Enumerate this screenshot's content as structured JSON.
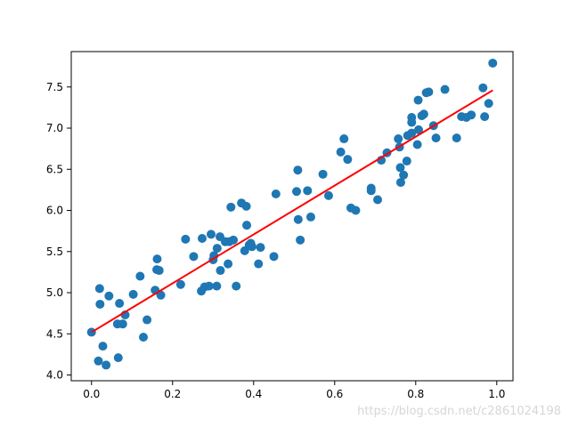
{
  "chart_data": {
    "type": "scatter",
    "title": "",
    "xlabel": "",
    "ylabel": "",
    "xlim": [
      -0.05,
      1.04
    ],
    "ylim": [
      3.93,
      7.93
    ],
    "grid": false,
    "x_ticks": [
      0.0,
      0.2,
      0.4,
      0.6,
      0.8,
      1.0
    ],
    "x_tick_labels": [
      "0.0",
      "0.2",
      "0.4",
      "0.6",
      "0.8",
      "1.0"
    ],
    "y_ticks": [
      4.0,
      4.5,
      5.0,
      5.5,
      6.0,
      6.5,
      7.0,
      7.5
    ],
    "y_tick_labels": [
      "4.0",
      "4.5",
      "5.0",
      "5.5",
      "6.0",
      "6.5",
      "7.0",
      "7.5"
    ],
    "series": [
      {
        "type": "scatter",
        "color": "#1f77b4",
        "points": [
          [
            0.0,
            4.52
          ],
          [
            0.017,
            4.17
          ],
          [
            0.02,
            5.05
          ],
          [
            0.021,
            4.86
          ],
          [
            0.028,
            4.35
          ],
          [
            0.036,
            4.12
          ],
          [
            0.043,
            4.96
          ],
          [
            0.064,
            4.62
          ],
          [
            0.066,
            4.21
          ],
          [
            0.069,
            4.87
          ],
          [
            0.077,
            4.62
          ],
          [
            0.083,
            4.73
          ],
          [
            0.103,
            4.98
          ],
          [
            0.12,
            5.2
          ],
          [
            0.128,
            4.46
          ],
          [
            0.137,
            4.67
          ],
          [
            0.157,
            5.03
          ],
          [
            0.161,
            5.28
          ],
          [
            0.162,
            5.41
          ],
          [
            0.167,
            5.27
          ],
          [
            0.171,
            4.97
          ],
          [
            0.22,
            5.1
          ],
          [
            0.232,
            5.65
          ],
          [
            0.252,
            5.44
          ],
          [
            0.271,
            5.02
          ],
          [
            0.273,
            5.66
          ],
          [
            0.279,
            5.07
          ],
          [
            0.29,
            5.08
          ],
          [
            0.295,
            5.71
          ],
          [
            0.3,
            5.4
          ],
          [
            0.302,
            5.45
          ],
          [
            0.309,
            5.08
          ],
          [
            0.31,
            5.54
          ],
          [
            0.317,
            5.68
          ],
          [
            0.318,
            5.27
          ],
          [
            0.33,
            5.62
          ],
          [
            0.337,
            5.35
          ],
          [
            0.34,
            5.62
          ],
          [
            0.344,
            6.04
          ],
          [
            0.35,
            5.64
          ],
          [
            0.357,
            5.08
          ],
          [
            0.37,
            6.09
          ],
          [
            0.378,
            5.51
          ],
          [
            0.382,
            6.05
          ],
          [
            0.383,
            5.82
          ],
          [
            0.389,
            5.58
          ],
          [
            0.393,
            5.6
          ],
          [
            0.396,
            5.56
          ],
          [
            0.412,
            5.35
          ],
          [
            0.417,
            5.55
          ],
          [
            0.45,
            5.44
          ],
          [
            0.455,
            6.2
          ],
          [
            0.506,
            6.23
          ],
          [
            0.509,
            6.49
          ],
          [
            0.51,
            5.89
          ],
          [
            0.515,
            5.64
          ],
          [
            0.533,
            6.24
          ],
          [
            0.541,
            5.92
          ],
          [
            0.571,
            6.44
          ],
          [
            0.585,
            6.18
          ],
          [
            0.615,
            6.71
          ],
          [
            0.623,
            6.87
          ],
          [
            0.632,
            6.62
          ],
          [
            0.64,
            6.03
          ],
          [
            0.652,
            6.0
          ],
          [
            0.69,
            6.27
          ],
          [
            0.69,
            6.24
          ],
          [
            0.706,
            6.13
          ],
          [
            0.715,
            6.61
          ],
          [
            0.729,
            6.7
          ],
          [
            0.757,
            6.87
          ],
          [
            0.76,
            6.77
          ],
          [
            0.762,
            6.52
          ],
          [
            0.763,
            6.34
          ],
          [
            0.77,
            6.43
          ],
          [
            0.778,
            6.6
          ],
          [
            0.78,
            6.91
          ],
          [
            0.79,
            6.94
          ],
          [
            0.79,
            7.13
          ],
          [
            0.79,
            7.07
          ],
          [
            0.804,
            6.8
          ],
          [
            0.806,
            7.34
          ],
          [
            0.807,
            6.98
          ],
          [
            0.815,
            7.15
          ],
          [
            0.82,
            7.17
          ],
          [
            0.826,
            7.43
          ],
          [
            0.832,
            7.44
          ],
          [
            0.844,
            7.03
          ],
          [
            0.85,
            6.88
          ],
          [
            0.872,
            7.47
          ],
          [
            0.901,
            6.88
          ],
          [
            0.913,
            7.14
          ],
          [
            0.925,
            7.13
          ],
          [
            0.937,
            7.16
          ],
          [
            0.966,
            7.49
          ],
          [
            0.97,
            7.14
          ],
          [
            0.98,
            7.3
          ],
          [
            0.99,
            7.79
          ]
        ]
      },
      {
        "type": "line",
        "color": "#ff0000",
        "x": [
          0.0,
          0.99
        ],
        "y": [
          4.52,
          7.46
        ]
      }
    ]
  },
  "watermark": "https://blog.csdn.net/c2861024198"
}
